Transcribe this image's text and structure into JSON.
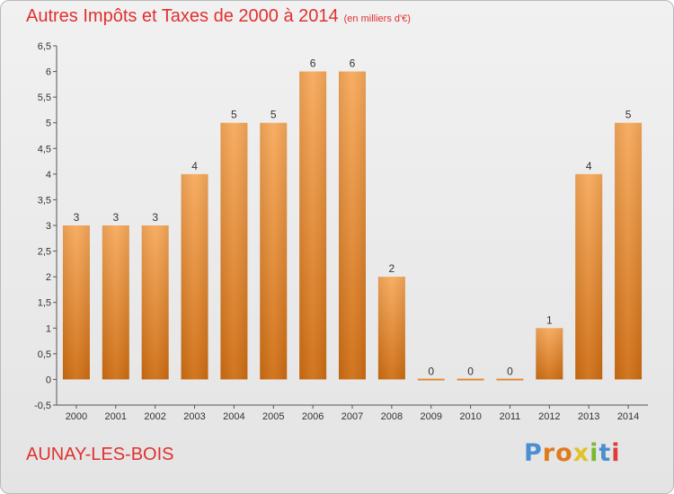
{
  "chart_data": {
    "type": "bar",
    "title": "Autres Impôts et Taxes de 2000 à 2014",
    "subtitle": "(en milliers d'€)",
    "categories": [
      "2000",
      "2001",
      "2002",
      "2003",
      "2004",
      "2005",
      "2006",
      "2007",
      "2008",
      "2009",
      "2010",
      "2011",
      "2012",
      "2013",
      "2014"
    ],
    "values": [
      3,
      3,
      3,
      4,
      5,
      5,
      6,
      6,
      2,
      0,
      0,
      0,
      1,
      4,
      5
    ],
    "ylim": [
      -0.5,
      6.5
    ],
    "yticks": [
      "-0,5",
      "0",
      "0,5",
      "1",
      "1,5",
      "2",
      "2,5",
      "3",
      "3,5",
      "4",
      "4,5",
      "5",
      "5,5",
      "6",
      "6,5"
    ],
    "grid": false,
    "bar_color": "#f08a24"
  },
  "commune": "AUNAY-LES-BOIS",
  "logo": {
    "letters": [
      "P",
      "r",
      "o",
      "x",
      "i",
      "t",
      "i"
    ],
    "colors": [
      "#4a8fd1",
      "#e07a1d",
      "#e07a1d",
      "#e3c128",
      "#7ab830",
      "#4a8fd1",
      "#e03a3a"
    ]
  }
}
